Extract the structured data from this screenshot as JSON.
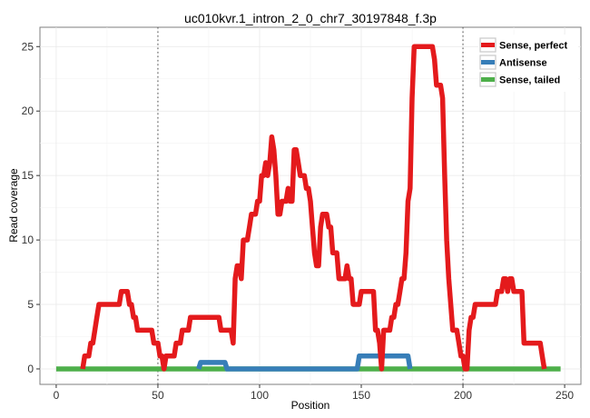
{
  "chart_data": {
    "type": "line",
    "title": "uc010kvr.1_intron_2_0_chr7_30197848_f.3p",
    "xlabel": "Position",
    "ylabel": "Read coverage",
    "xlim": [
      -8,
      258
    ],
    "ylim": [
      -1.2,
      26.5
    ],
    "x_ticks": [
      0,
      50,
      100,
      150,
      200,
      250
    ],
    "y_ticks": [
      0,
      5,
      10,
      15,
      20,
      25
    ],
    "vlines": [
      50,
      200
    ],
    "grid": true,
    "legend_position": "top-right",
    "series": [
      {
        "name": "Sense, perfect",
        "color": "#E41A1C",
        "points": [
          [
            13,
            0
          ],
          [
            14,
            1
          ],
          [
            15,
            1
          ],
          [
            16,
            1
          ],
          [
            17,
            2
          ],
          [
            18,
            2
          ],
          [
            19,
            3
          ],
          [
            20,
            4
          ],
          [
            21,
            5
          ],
          [
            22,
            5
          ],
          [
            23,
            5
          ],
          [
            24,
            5
          ],
          [
            25,
            5
          ],
          [
            26,
            5
          ],
          [
            27,
            5
          ],
          [
            28,
            5
          ],
          [
            29,
            5
          ],
          [
            30,
            5
          ],
          [
            31,
            5
          ],
          [
            32,
            6
          ],
          [
            33,
            6
          ],
          [
            34,
            6
          ],
          [
            35,
            6
          ],
          [
            36,
            5
          ],
          [
            37,
            5
          ],
          [
            38,
            4
          ],
          [
            39,
            4
          ],
          [
            40,
            3
          ],
          [
            41,
            3
          ],
          [
            42,
            3
          ],
          [
            43,
            3
          ],
          [
            44,
            3
          ],
          [
            45,
            3
          ],
          [
            46,
            3
          ],
          [
            47,
            3
          ],
          [
            48,
            2
          ],
          [
            49,
            2
          ],
          [
            50,
            2
          ],
          [
            51,
            1
          ],
          [
            52,
            1
          ],
          [
            53,
            0
          ],
          [
            54,
            1
          ],
          [
            55,
            1
          ],
          [
            56,
            1
          ],
          [
            57,
            1
          ],
          [
            58,
            1
          ],
          [
            59,
            2
          ],
          [
            60,
            2
          ],
          [
            61,
            2
          ],
          [
            62,
            3
          ],
          [
            63,
            3
          ],
          [
            64,
            3
          ],
          [
            65,
            3
          ],
          [
            66,
            4
          ],
          [
            67,
            4
          ],
          [
            68,
            4
          ],
          [
            69,
            4
          ],
          [
            70,
            4
          ],
          [
            71,
            4
          ],
          [
            72,
            4
          ],
          [
            73,
            4
          ],
          [
            74,
            4
          ],
          [
            75,
            4
          ],
          [
            76,
            4
          ],
          [
            77,
            4
          ],
          [
            78,
            4
          ],
          [
            79,
            4
          ],
          [
            80,
            4
          ],
          [
            81,
            3
          ],
          [
            82,
            3
          ],
          [
            83,
            3
          ],
          [
            84,
            3
          ],
          [
            85,
            3
          ],
          [
            86,
            3
          ],
          [
            87,
            2
          ],
          [
            88,
            7
          ],
          [
            89,
            8
          ],
          [
            90,
            8
          ],
          [
            91,
            7
          ],
          [
            92,
            10
          ],
          [
            93,
            10
          ],
          [
            94,
            10
          ],
          [
            95,
            11
          ],
          [
            96,
            12
          ],
          [
            97,
            12
          ],
          [
            98,
            12
          ],
          [
            99,
            13
          ],
          [
            100,
            13
          ],
          [
            101,
            15
          ],
          [
            102,
            15
          ],
          [
            103,
            16
          ],
          [
            104,
            15
          ],
          [
            105,
            16
          ],
          [
            106,
            18
          ],
          [
            107,
            17
          ],
          [
            108,
            15
          ],
          [
            109,
            12
          ],
          [
            110,
            12
          ],
          [
            111,
            13
          ],
          [
            112,
            13
          ],
          [
            113,
            13
          ],
          [
            114,
            14
          ],
          [
            115,
            13
          ],
          [
            116,
            13
          ],
          [
            117,
            17
          ],
          [
            118,
            17
          ],
          [
            119,
            16
          ],
          [
            120,
            15
          ],
          [
            121,
            15
          ],
          [
            122,
            15
          ],
          [
            123,
            14
          ],
          [
            124,
            14
          ],
          [
            125,
            13
          ],
          [
            126,
            11
          ],
          [
            127,
            9
          ],
          [
            128,
            8
          ],
          [
            129,
            8
          ],
          [
            130,
            11
          ],
          [
            131,
            12
          ],
          [
            132,
            12
          ],
          [
            133,
            12
          ],
          [
            134,
            11
          ],
          [
            135,
            11
          ],
          [
            136,
            9
          ],
          [
            137,
            9
          ],
          [
            138,
            9
          ],
          [
            139,
            7
          ],
          [
            140,
            7
          ],
          [
            141,
            7
          ],
          [
            142,
            7
          ],
          [
            143,
            8
          ],
          [
            144,
            7
          ],
          [
            145,
            7
          ],
          [
            146,
            5
          ],
          [
            147,
            5
          ],
          [
            148,
            5
          ],
          [
            149,
            5
          ],
          [
            150,
            6
          ],
          [
            151,
            6
          ],
          [
            152,
            6
          ],
          [
            153,
            6
          ],
          [
            154,
            6
          ],
          [
            155,
            6
          ],
          [
            156,
            6
          ],
          [
            157,
            3
          ],
          [
            158,
            3
          ],
          [
            159,
            2
          ],
          [
            160,
            0
          ],
          [
            161,
            3
          ],
          [
            162,
            3
          ],
          [
            163,
            3
          ],
          [
            164,
            3
          ],
          [
            165,
            4
          ],
          [
            166,
            4
          ],
          [
            167,
            5
          ],
          [
            168,
            5
          ],
          [
            169,
            6
          ],
          [
            170,
            7
          ],
          [
            171,
            7
          ],
          [
            172,
            9
          ],
          [
            173,
            13
          ],
          [
            174,
            14
          ],
          [
            175,
            21
          ],
          [
            176,
            25
          ],
          [
            177,
            25
          ],
          [
            178,
            25
          ],
          [
            179,
            25
          ],
          [
            180,
            25
          ],
          [
            181,
            25
          ],
          [
            182,
            25
          ],
          [
            183,
            25
          ],
          [
            184,
            25
          ],
          [
            185,
            25
          ],
          [
            186,
            24
          ],
          [
            187,
            22
          ],
          [
            188,
            22
          ],
          [
            189,
            22
          ],
          [
            190,
            21
          ],
          [
            191,
            15
          ],
          [
            192,
            10
          ],
          [
            193,
            7
          ],
          [
            194,
            5
          ],
          [
            195,
            3
          ],
          [
            196,
            3
          ],
          [
            197,
            3
          ],
          [
            198,
            2
          ],
          [
            199,
            1
          ],
          [
            200,
            1
          ],
          [
            201,
            0
          ],
          [
            202,
            0
          ],
          [
            203,
            3
          ],
          [
            204,
            4
          ],
          [
            205,
            4
          ],
          [
            206,
            5
          ],
          [
            207,
            5
          ],
          [
            208,
            5
          ],
          [
            209,
            5
          ],
          [
            210,
            5
          ],
          [
            211,
            5
          ],
          [
            212,
            5
          ],
          [
            213,
            5
          ],
          [
            214,
            5
          ],
          [
            215,
            5
          ],
          [
            216,
            5
          ],
          [
            217,
            6
          ],
          [
            218,
            6
          ],
          [
            219,
            6
          ],
          [
            220,
            7
          ],
          [
            221,
            7
          ],
          [
            222,
            6
          ],
          [
            223,
            7
          ],
          [
            224,
            7
          ],
          [
            225,
            6
          ],
          [
            226,
            6
          ],
          [
            227,
            6
          ],
          [
            228,
            6
          ],
          [
            229,
            6
          ],
          [
            230,
            2
          ],
          [
            231,
            2
          ],
          [
            232,
            2
          ],
          [
            233,
            2
          ],
          [
            234,
            2
          ],
          [
            235,
            2
          ],
          [
            236,
            2
          ],
          [
            237,
            2
          ],
          [
            238,
            2
          ],
          [
            239,
            1
          ],
          [
            240,
            0
          ]
        ]
      },
      {
        "name": "Antisense",
        "color": "#377EB8",
        "points": [
          [
            70,
            0
          ],
          [
            71,
            0.5
          ],
          [
            72,
            0.5
          ],
          [
            73,
            0.5
          ],
          [
            74,
            0.5
          ],
          [
            75,
            0.5
          ],
          [
            76,
            0.5
          ],
          [
            77,
            0.5
          ],
          [
            78,
            0.5
          ],
          [
            79,
            0.5
          ],
          [
            80,
            0.5
          ],
          [
            81,
            0.5
          ],
          [
            82,
            0.5
          ],
          [
            83,
            0.5
          ],
          [
            84,
            0
          ],
          [
            148,
            0
          ],
          [
            149,
            1
          ],
          [
            150,
            1
          ],
          [
            151,
            1
          ],
          [
            152,
            1
          ],
          [
            153,
            1
          ],
          [
            154,
            1
          ],
          [
            155,
            1
          ],
          [
            156,
            1
          ],
          [
            157,
            1
          ],
          [
            158,
            1
          ],
          [
            159,
            1
          ],
          [
            160,
            1
          ],
          [
            161,
            1
          ],
          [
            162,
            1
          ],
          [
            163,
            1
          ],
          [
            164,
            1
          ],
          [
            165,
            1
          ],
          [
            166,
            1
          ],
          [
            167,
            1
          ],
          [
            168,
            1
          ],
          [
            169,
            1
          ],
          [
            170,
            1
          ],
          [
            171,
            1
          ],
          [
            172,
            1
          ],
          [
            173,
            1
          ],
          [
            174,
            0
          ]
        ]
      },
      {
        "name": "Sense, tailed",
        "color": "#4DAF4A",
        "points": [
          [
            0,
            0
          ],
          [
            248,
            0
          ]
        ]
      }
    ]
  }
}
